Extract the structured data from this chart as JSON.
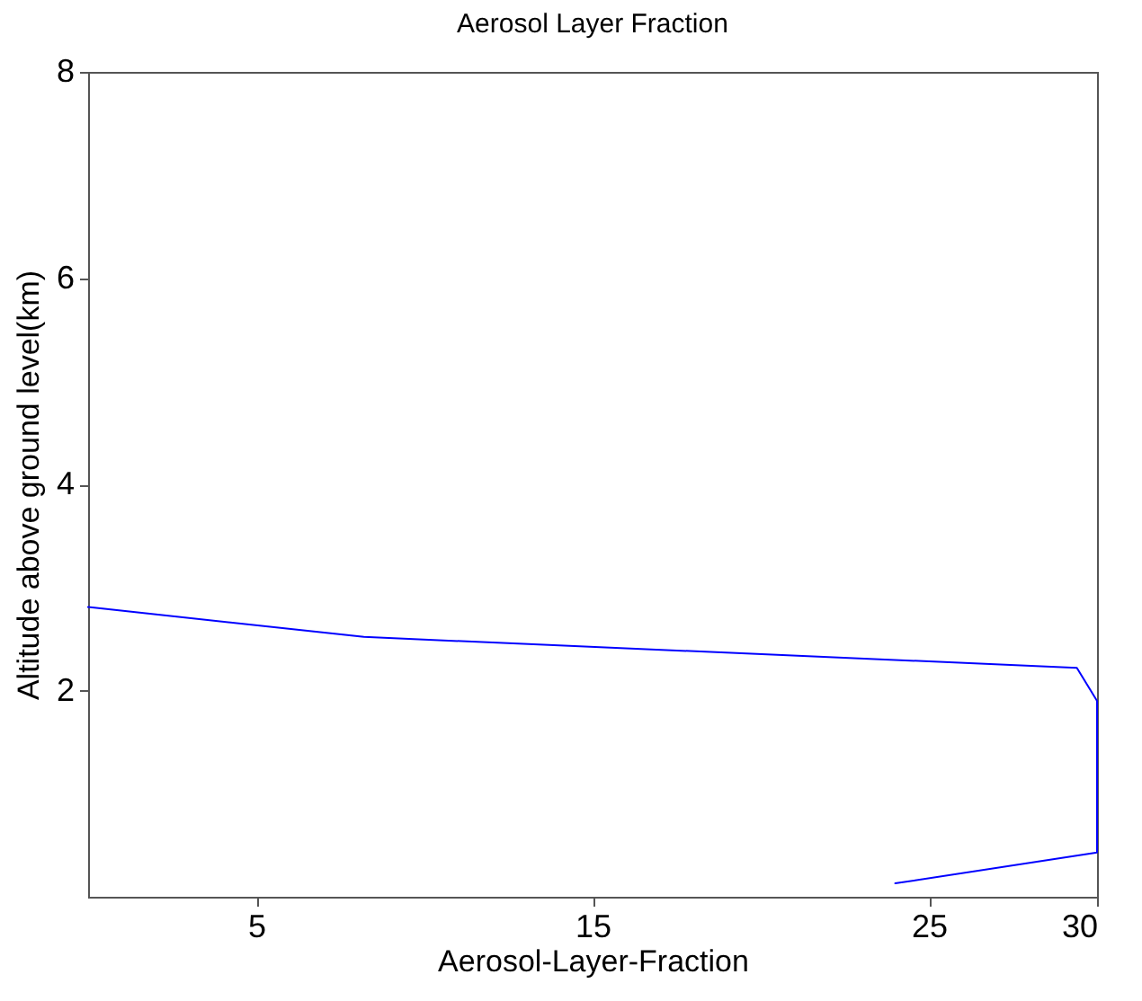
{
  "chart_data": {
    "type": "line",
    "title": "Aerosol Layer Fraction",
    "xlabel": "Aerosol-Layer-Fraction",
    "ylabel": "Altitude above ground level(km)",
    "xlim": [
      0,
      30
    ],
    "xticks": [
      5,
      15,
      25,
      30
    ],
    "ylim": [
      0,
      8
    ],
    "yticks": [
      2,
      4,
      6,
      8
    ],
    "grid": false,
    "marker": "none",
    "line_style": "solid",
    "series": [
      {
        "color": "#0000ff",
        "x": [
          0,
          8.2,
          29.4,
          30,
          30,
          24.0
        ],
        "values": [
          2.81,
          2.52,
          2.22,
          1.9,
          0.43,
          0.13
        ]
      }
    ]
  }
}
